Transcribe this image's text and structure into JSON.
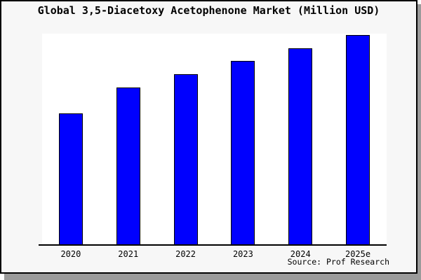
{
  "title": "Global 3,5-Diacetoxy Acetophenone Market (Million USD)",
  "source_caption": "Source: Prof Research",
  "colors": {
    "canvas_bg": "#f7f7f7",
    "plot_bg": "#ffffff",
    "bar_fill": "#0000fe",
    "bar_border": "#000000",
    "axis": "#000000",
    "frame_border": "#000000",
    "drop_shadow": "#9b9b9b",
    "text": "#000000"
  },
  "chart_data": {
    "type": "bar",
    "title": "Global 3,5-Diacetoxy Acetophenone Market (Million USD)",
    "categories": [
      "2020",
      "2021",
      "2022",
      "2023",
      "2024",
      "2025e"
    ],
    "values": [
      62.3,
      74.5,
      80.8,
      87.1,
      93.0,
      99.3
    ],
    "series_color": "#0000fe",
    "xlabel": "",
    "ylabel": "",
    "ylim": [
      0,
      100
    ],
    "y_axis_shown": false,
    "gridlines": false,
    "legend": false,
    "values_are_relative_estimates": true,
    "annotation": "Source: Prof Research"
  }
}
